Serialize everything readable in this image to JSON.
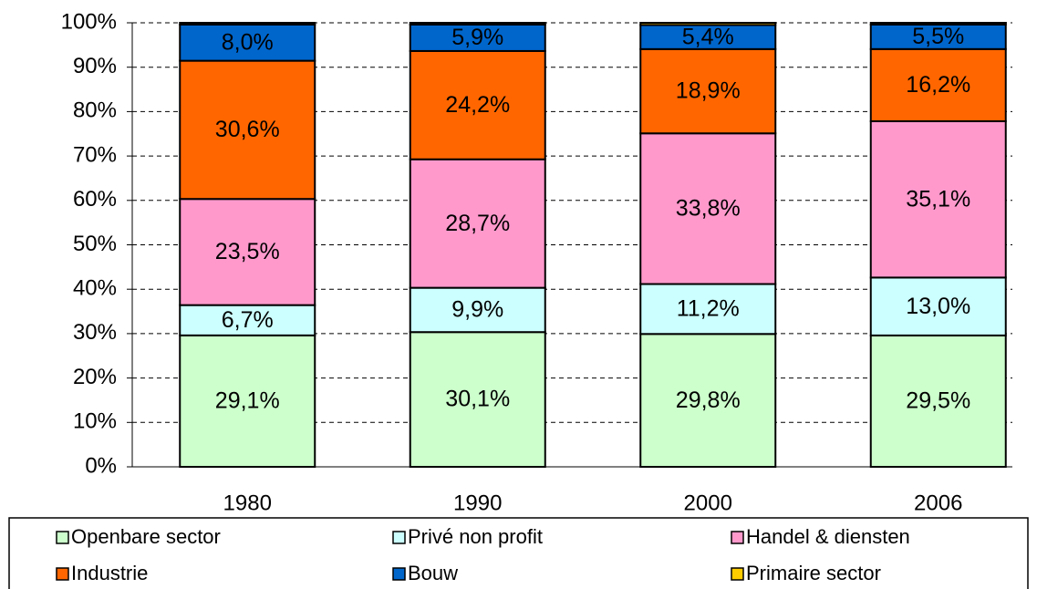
{
  "chart_data": {
    "type": "bar",
    "stacking": "percent",
    "categories": [
      "1980",
      "1990",
      "2000",
      "2006"
    ],
    "series": [
      {
        "name": "Openbare sector",
        "color": "#ccffcc",
        "values": [
          29.1,
          30.1,
          29.8,
          29.5
        ],
        "value_labels": [
          "29,1%",
          "30,1%",
          "29,8%",
          "29,5%"
        ]
      },
      {
        "name": "Privé non profit",
        "color": "#ccffff",
        "values": [
          6.7,
          9.9,
          11.2,
          13.0
        ],
        "value_labels": [
          "6,7%",
          "9,9%",
          "11,2%",
          "13,0%"
        ]
      },
      {
        "name": "Handel & diensten",
        "color": "#ff99cc",
        "values": [
          23.5,
          28.7,
          33.8,
          35.1
        ],
        "value_labels": [
          "23,5%",
          "28,7%",
          "33,8%",
          "35,1%"
        ]
      },
      {
        "name": "Industrie",
        "color": "#ff6600",
        "values": [
          30.6,
          24.2,
          18.9,
          16.2
        ],
        "value_labels": [
          "30,6%",
          "24,2%",
          "18,9%",
          "16,2%"
        ]
      },
      {
        "name": "Bouw",
        "color": "#0066cc",
        "values": [
          8.0,
          5.9,
          5.4,
          5.5
        ],
        "value_labels": [
          "8,0%",
          "5,9%",
          "5,4%",
          "5,5%"
        ]
      },
      {
        "name": "Primaire sector",
        "color": "#ffcc00",
        "values": [
          0.4,
          0.4,
          0.5,
          0.4
        ]
      }
    ],
    "ylim": [
      0,
      100
    ],
    "yticks": [
      {
        "value": 0,
        "label": "0%"
      },
      {
        "value": 10,
        "label": "10%"
      },
      {
        "value": 20,
        "label": "20%"
      },
      {
        "value": 30,
        "label": "30%"
      },
      {
        "value": 40,
        "label": "40%"
      },
      {
        "value": 50,
        "label": "50%"
      },
      {
        "value": 60,
        "label": "60%"
      },
      {
        "value": 70,
        "label": "70%"
      },
      {
        "value": 80,
        "label": "80%"
      },
      {
        "value": 90,
        "label": "90%"
      },
      {
        "value": 100,
        "label": "100%"
      }
    ],
    "grid": true,
    "legend": "bottom"
  }
}
